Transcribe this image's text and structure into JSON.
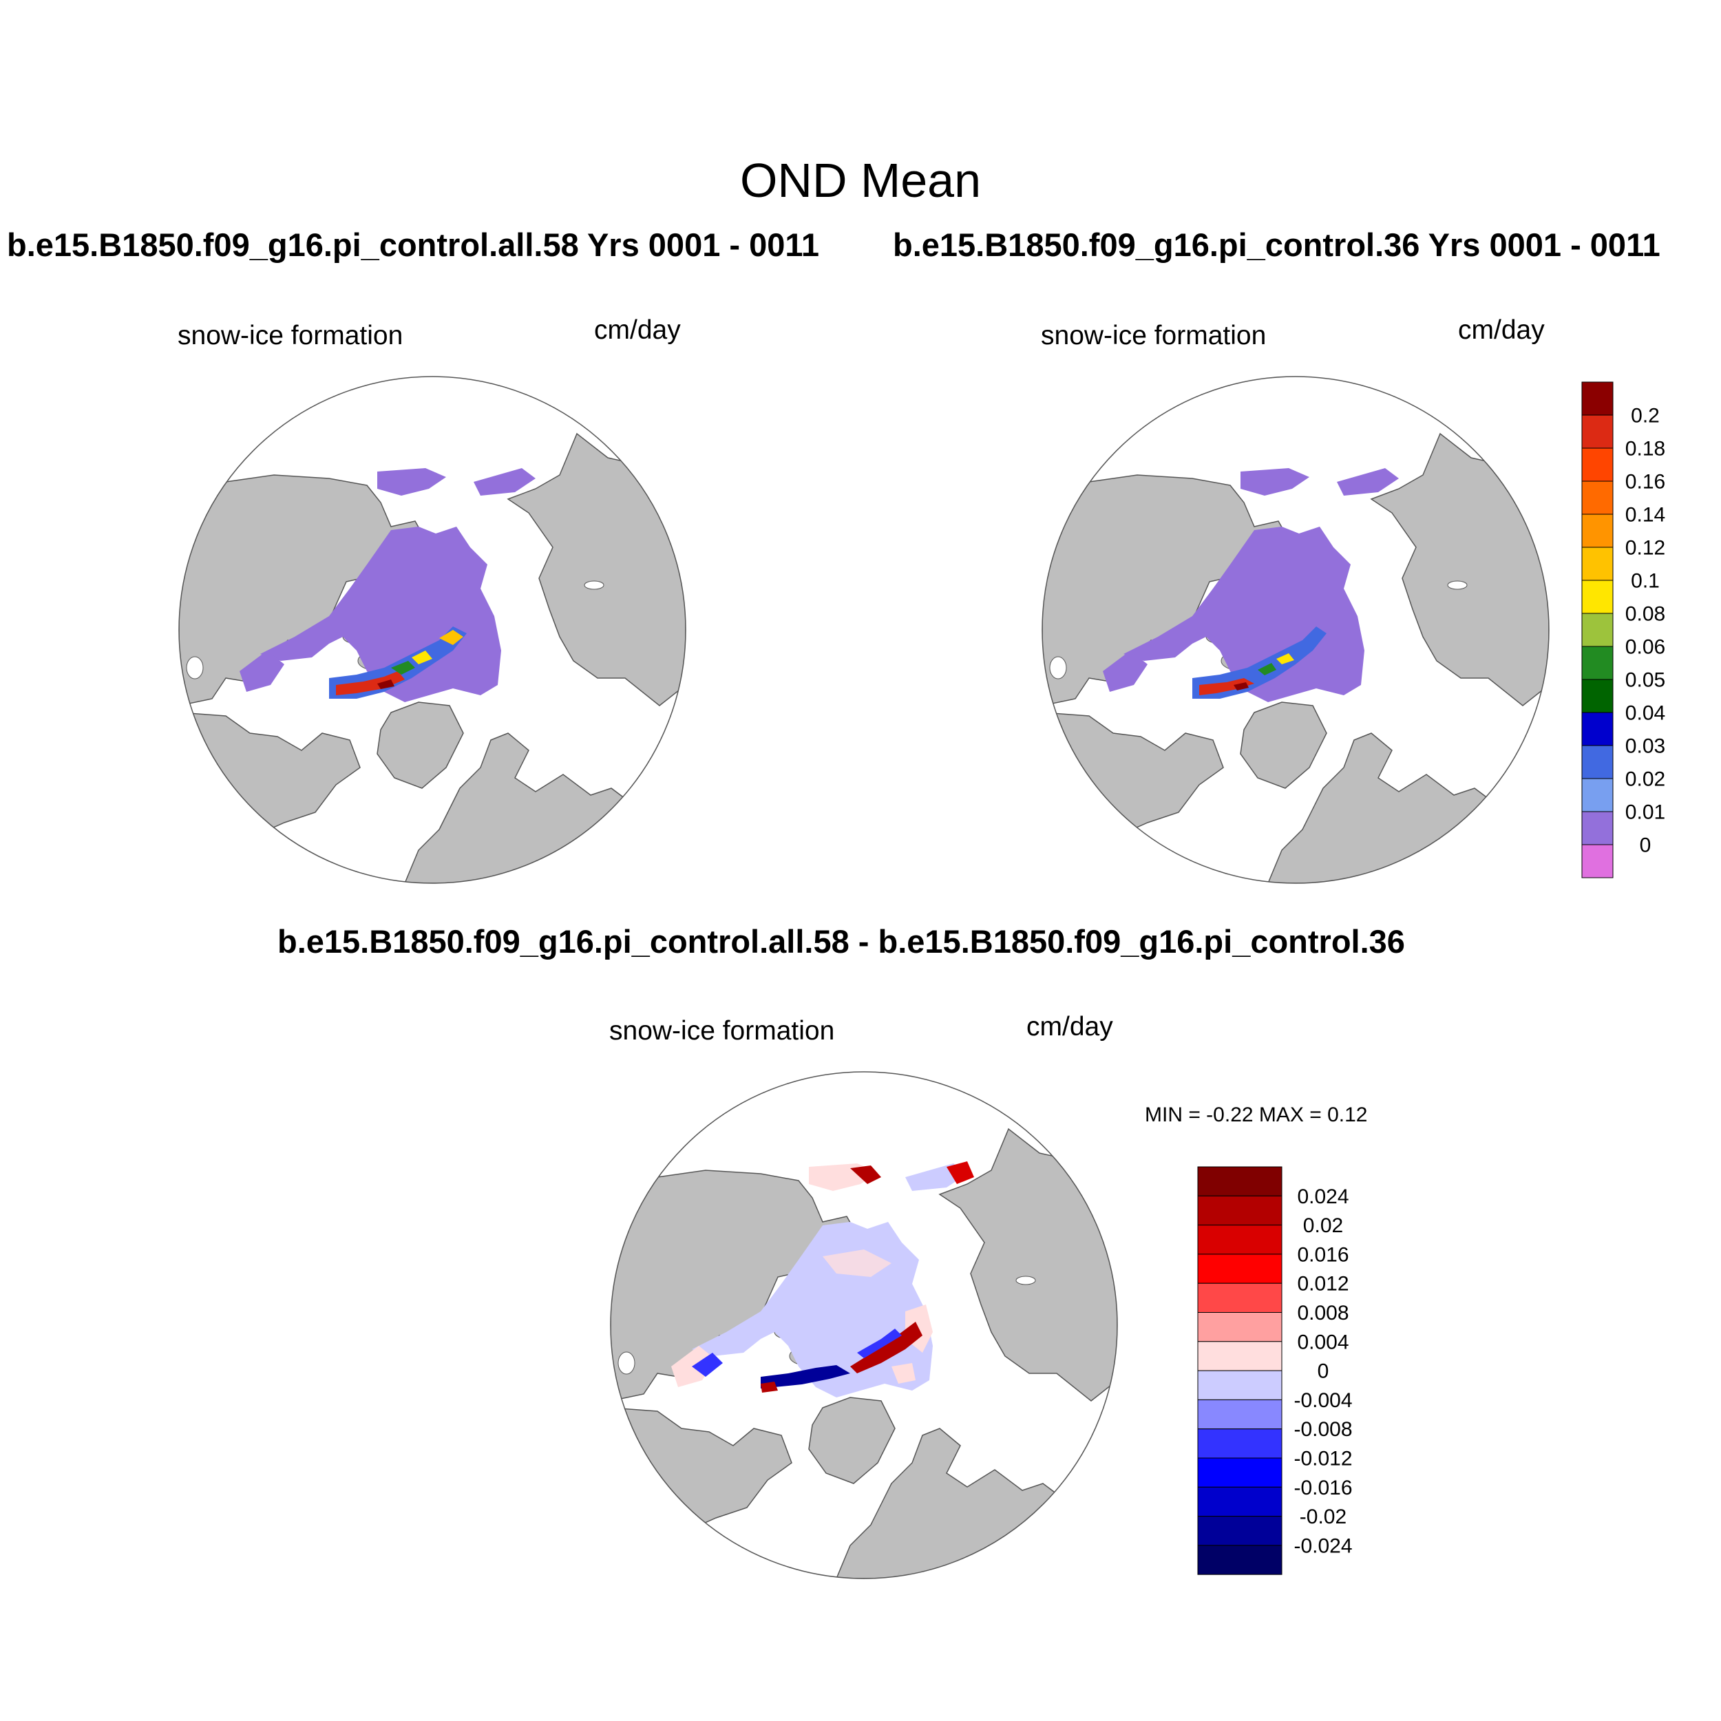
{
  "figure": {
    "title": "OND Mean"
  },
  "panels": {
    "top_left": {
      "case_title": "b.e15.B1850.f09_g16.pi_control.all.58  Yrs 0001 - 0011",
      "variable": "snow-ice formation",
      "units": "cm/day"
    },
    "top_right": {
      "case_title": "b.e15.B1850.f09_g16.pi_control.36  Yrs 0001 - 0011",
      "variable": "snow-ice formation",
      "units": "cm/day"
    },
    "difference": {
      "case_title": "b.e15.B1850.f09_g16.pi_control.all.58 - b.e15.B1850.f09_g16.pi_control.36",
      "variable": "snow-ice formation",
      "units": "cm/day",
      "minmax": "MIN =  -0.22 MAX =   0.12"
    }
  },
  "legends": {
    "main": {
      "labels": [
        "0.2",
        "0.18",
        "0.16",
        "0.14",
        "0.12",
        "0.1",
        "0.08",
        "0.06",
        "0.05",
        "0.04",
        "0.03",
        "0.02",
        "0.01",
        "0"
      ],
      "colors": [
        "#8b0000",
        "#dc2a14",
        "#ff4500",
        "#ff6a00",
        "#ff9400",
        "#ffc200",
        "#ffe600",
        "#9dc33c",
        "#228b22",
        "#006400",
        "#0000cd",
        "#4169e1",
        "#789ff0",
        "#9370db",
        "#e070e0"
      ]
    },
    "diff": {
      "labels": [
        "0.024",
        "0.02",
        "0.016",
        "0.012",
        "0.008",
        "0.004",
        "0",
        "-0.004",
        "-0.008",
        "-0.012",
        "-0.016",
        "-0.02",
        "-0.024"
      ],
      "colors": [
        "#800000",
        "#b30000",
        "#d90000",
        "#ff0000",
        "#ff4848",
        "#ffa0a0",
        "#ffdede",
        "#ccccff",
        "#8888ff",
        "#3333ff",
        "#0000ff",
        "#0000cc",
        "#000099",
        "#000066"
      ]
    }
  },
  "map_colors": {
    "land": "#bebebe",
    "ocean": "#ffffff",
    "ice_main": "#9370db",
    "ice_diff": "#ccccff"
  }
}
